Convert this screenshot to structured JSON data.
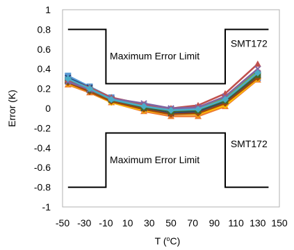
{
  "chart_data": {
    "type": "line",
    "xlabel": "T (",
    "xlabel_sup": "o",
    "xlabel_unit": "C)",
    "ylabel": "Error (K)",
    "xlim": [
      -50,
      150
    ],
    "ylim": [
      -1,
      1
    ],
    "xticks": [
      "-50",
      "-30",
      "-10",
      "10",
      "30",
      "50",
      "70",
      "90",
      "110",
      "130",
      "150"
    ],
    "yticks": [
      "-1",
      "-0.8",
      "-0.6",
      "-0.4",
      "-0.2",
      "0",
      "0.2",
      "0.4",
      "0.6",
      "0.8",
      "1"
    ],
    "grid": false,
    "x": [
      -45,
      -25,
      -5,
      25,
      50,
      75,
      100,
      130
    ],
    "series": [
      {
        "color": "#4472C4",
        "values": [
          0.3,
          0.2,
          0.09,
          0.01,
          -0.05,
          -0.04,
          0.06,
          0.31
        ]
      },
      {
        "color": "#ED7D31",
        "values": [
          0.24,
          0.16,
          0.06,
          -0.03,
          -0.08,
          -0.08,
          0.02,
          0.29
        ]
      },
      {
        "color": "#A5A5A5",
        "values": [
          0.27,
          0.18,
          0.08,
          0.0,
          -0.04,
          -0.02,
          0.09,
          0.36
        ]
      },
      {
        "color": "#FFC000",
        "values": [
          0.25,
          0.17,
          0.06,
          -0.02,
          -0.06,
          -0.06,
          0.03,
          0.3
        ]
      },
      {
        "color": "#5B9BD5",
        "values": [
          0.33,
          0.22,
          0.11,
          0.03,
          -0.01,
          0.0,
          0.1,
          0.35
        ]
      },
      {
        "color": "#70AD47",
        "values": [
          0.29,
          0.2,
          0.1,
          0.02,
          -0.03,
          -0.01,
          0.11,
          0.38
        ]
      },
      {
        "color": "#264478",
        "values": [
          0.31,
          0.21,
          0.09,
          0.0,
          -0.05,
          -0.03,
          0.07,
          0.33
        ]
      },
      {
        "color": "#9E480E",
        "values": [
          0.26,
          0.17,
          0.07,
          -0.01,
          -0.06,
          -0.05,
          0.05,
          0.31
        ]
      },
      {
        "color": "#43682B",
        "values": [
          0.28,
          0.19,
          0.09,
          0.01,
          -0.03,
          -0.02,
          0.08,
          0.34
        ]
      },
      {
        "color": "#C0504D",
        "values": [
          0.29,
          0.21,
          0.11,
          0.04,
          0.0,
          0.03,
          0.15,
          0.45
        ]
      },
      {
        "color": "#8064A2",
        "values": [
          0.27,
          0.19,
          0.1,
          0.05,
          0.0,
          0.01,
          0.12,
          0.4
        ]
      },
      {
        "color": "#4BACC6",
        "values": [
          0.3,
          0.2,
          0.09,
          0.02,
          -0.02,
          -0.01,
          0.09,
          0.36
        ]
      }
    ],
    "upper_limit": {
      "x": [
        -45,
        -10,
        -10,
        100,
        100,
        140
      ],
      "y": [
        0.8,
        0.8,
        0.25,
        0.25,
        0.8,
        0.8
      ]
    },
    "lower_limit": {
      "x": [
        -45,
        -10,
        -10,
        100,
        100,
        140
      ],
      "y": [
        -0.8,
        -0.8,
        -0.25,
        -0.25,
        -0.8,
        -0.8
      ]
    },
    "annotations": [
      {
        "text": "Maximum Error Limit",
        "x": 35,
        "y": 0.53
      },
      {
        "text": "SMT172",
        "x": 122,
        "y": 0.66
      },
      {
        "text": "Maximum Error Limit",
        "x": 35,
        "y": -0.52
      },
      {
        "text": "SMT172",
        "x": 122,
        "y": -0.36
      }
    ]
  }
}
